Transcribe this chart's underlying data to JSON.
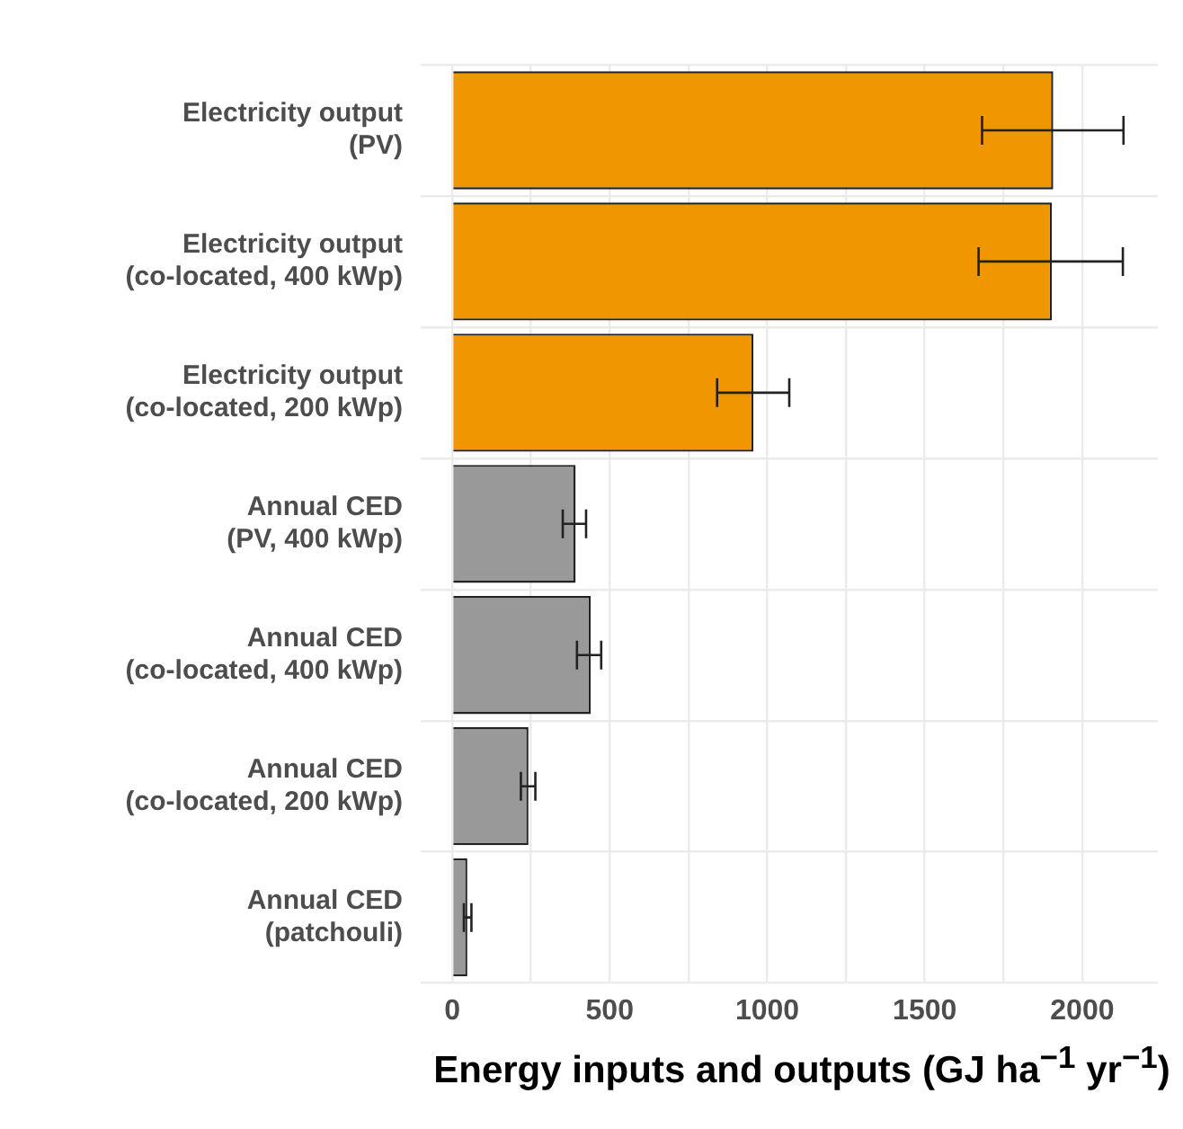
{
  "chart_data": {
    "type": "bar",
    "orientation": "horizontal",
    "xlabel": "Energy inputs and outputs (GJ ha$^{−1}$ yr$^{−1}$)",
    "categories": [
      "Electricity output\n(PV)",
      "Electricity output\n(co-located, 400 kWp)",
      "Electricity output\n(co-located, 200 kWp)",
      "Annual CED\n(PV, 400 kWp)",
      "Annual CED\n(co-located, 400 kWp)",
      "Annual CED\n(co-located, 200 kWp)",
      "Annual CED\n(patchouli)"
    ],
    "values": [
      1908,
      1904,
      956,
      392,
      440,
      242,
      48
    ],
    "colors": [
      "#f09600",
      "#f09600",
      "#f09600",
      "#999999",
      "#999999",
      "#999999",
      "#999999"
    ],
    "errors": [
      [
        1682,
        2131
      ],
      [
        1671,
        2129
      ],
      [
        841,
        1070
      ],
      [
        351,
        425
      ],
      [
        396,
        473
      ],
      [
        218,
        264
      ],
      [
        37,
        61
      ]
    ],
    "xlim": [
      -100,
      2240
    ],
    "xticks": [
      0,
      {
        "value": 250,
        "label": null
      },
      500,
      {
        "value": 750,
        "label": null
      },
      1000,
      {
        "value": 1250,
        "label": null
      },
      1500,
      {
        "value": 1750,
        "label": null
      },
      2000
    ],
    "grid": true
  }
}
